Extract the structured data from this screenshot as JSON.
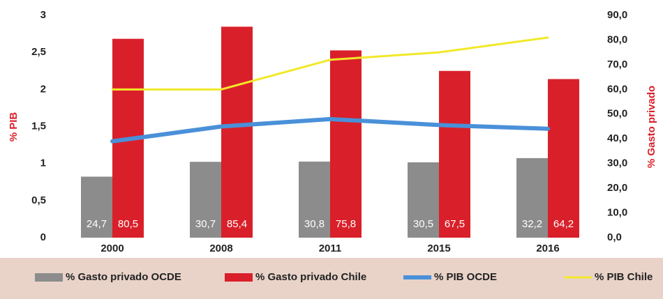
{
  "chart_data": {
    "type": "bar",
    "categories": [
      "2000",
      "2008",
      "2011",
      "2015",
      "2016"
    ],
    "ylabel": "% PIB",
    "y2label": "% Gasto privado",
    "ylim": [
      0,
      3
    ],
    "yticks": [
      0,
      {
        "value": 0.5,
        "label": "0,5"
      },
      1,
      {
        "value": 1.5,
        "label": "1,5"
      },
      2,
      {
        "value": 2.5,
        "label": "2,5"
      },
      3
    ],
    "y2lim": [
      0,
      90
    ],
    "y2ticks": [
      {
        "value": 0,
        "label": "0,0"
      },
      {
        "value": 10,
        "label": "10,0"
      },
      {
        "value": 20,
        "label": "20,0"
      },
      {
        "value": 30,
        "label": "30,0"
      },
      {
        "value": 40,
        "label": "40,0"
      },
      {
        "value": 50,
        "label": "50,0"
      },
      {
        "value": 60,
        "label": "60,0"
      },
      {
        "value": 70,
        "label": "70,0"
      },
      {
        "value": 80,
        "label": "80,0"
      },
      {
        "value": 90,
        "label": "90,0"
      }
    ],
    "series": [
      {
        "name": "% Gasto privado OCDE",
        "type": "bar",
        "axis": "y2",
        "color": "#8c8c8c",
        "values": [
          24.7,
          30.7,
          30.8,
          30.5,
          32.2
        ],
        "value_labels": [
          "24,7",
          "30,7",
          "30,8",
          "30,5",
          "32,2"
        ]
      },
      {
        "name": "% Gasto privado Chile",
        "type": "bar",
        "axis": "y2",
        "color": "#d9202a",
        "values": [
          80.5,
          85.4,
          75.8,
          67.5,
          64.2
        ],
        "value_labels": [
          "80,5",
          "85,4",
          "75,8",
          "67,5",
          "64,2"
        ]
      },
      {
        "name": "% PIB OCDE",
        "type": "line",
        "color": "#4a90d9",
        "values": [
          1.3,
          1.5,
          1.6,
          1.52,
          1.47
        ]
      },
      {
        "name": "% PIB Chile",
        "type": "line",
        "color": "#f2e829",
        "values": [
          2.0,
          2.0,
          2.4,
          2.5,
          2.7
        ]
      }
    ]
  }
}
